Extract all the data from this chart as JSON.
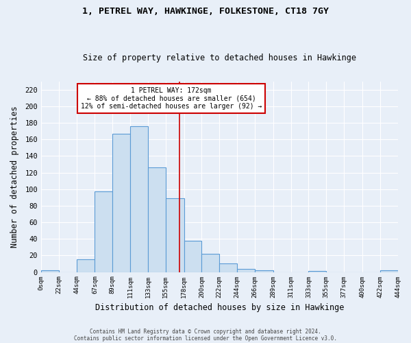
{
  "title1": "1, PETREL WAY, HAWKINGE, FOLKESTONE, CT18 7GY",
  "title2": "Size of property relative to detached houses in Hawkinge",
  "xlabel": "Distribution of detached houses by size in Hawkinge",
  "ylabel": "Number of detached properties",
  "footnote1": "Contains HM Land Registry data © Crown copyright and database right 2024.",
  "footnote2": "Contains public sector information licensed under the Open Government Licence v3.0.",
  "bar_edges": [
    0,
    22,
    44,
    67,
    89,
    111,
    133,
    155,
    178,
    200,
    222,
    244,
    266,
    289,
    311,
    333,
    355,
    377,
    400,
    422,
    444
  ],
  "bar_heights": [
    2,
    0,
    15,
    97,
    167,
    176,
    126,
    89,
    38,
    22,
    10,
    4,
    2,
    0,
    0,
    1,
    0,
    0,
    0,
    2
  ],
  "bar_color": "#ccdff0",
  "bar_edge_color": "#5b9bd5",
  "ylim": [
    0,
    230
  ],
  "yticks": [
    0,
    20,
    40,
    60,
    80,
    100,
    120,
    140,
    160,
    180,
    200,
    220
  ],
  "property_size": 172,
  "vline_color": "#cc0000",
  "annotation_line1": "1 PETREL WAY: 172sqm",
  "annotation_line2": "← 88% of detached houses are smaller (654)",
  "annotation_line3": "12% of semi-detached houses are larger (92) →",
  "annotation_box_color": "#ffffff",
  "annotation_box_edge": "#cc0000",
  "bg_color": "#e8eff8",
  "plot_bg_color": "#e8eff8",
  "grid_color": "#ffffff",
  "tick_labels": [
    "0sqm",
    "22sqm",
    "44sqm",
    "67sqm",
    "89sqm",
    "111sqm",
    "133sqm",
    "155sqm",
    "178sqm",
    "200sqm",
    "222sqm",
    "244sqm",
    "266sqm",
    "289sqm",
    "311sqm",
    "333sqm",
    "355sqm",
    "377sqm",
    "400sqm",
    "422sqm",
    "444sqm"
  ]
}
